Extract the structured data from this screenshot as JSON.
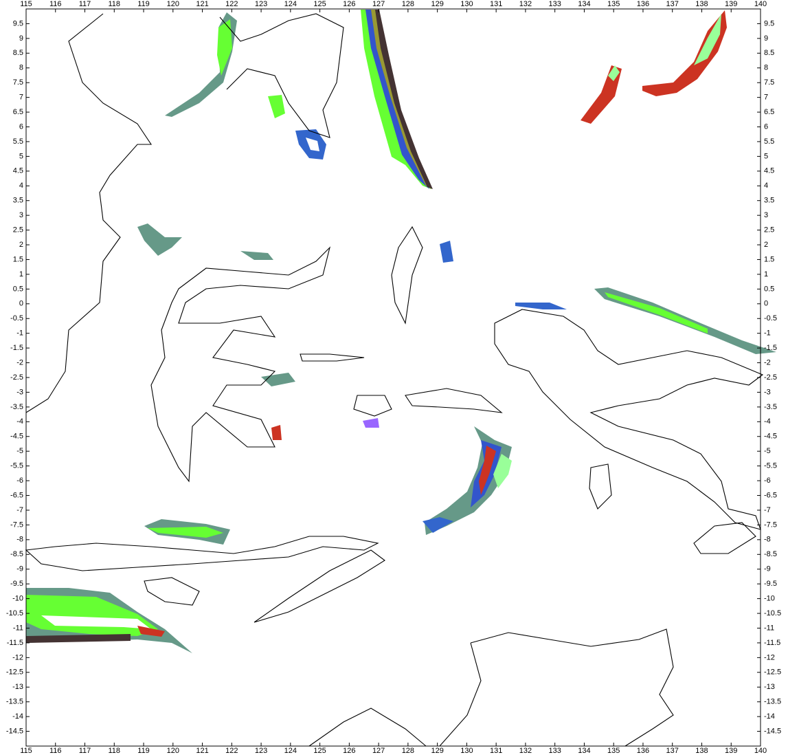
{
  "chart_data": {
    "type": "map",
    "xlim": [
      115,
      140
    ],
    "ylim": [
      -15,
      10
    ],
    "xticks": [
      115,
      116,
      117,
      118,
      119,
      120,
      121,
      122,
      123,
      124,
      125,
      126,
      127,
      128,
      129,
      130,
      131,
      132,
      133,
      134,
      135,
      136,
      137,
      138,
      139,
      140
    ],
    "yticks": [
      9.5,
      9,
      8.5,
      8,
      7.5,
      7,
      6.5,
      6,
      5.5,
      5,
      4.5,
      4,
      3.5,
      3,
      2.5,
      2,
      1.5,
      1,
      0.5,
      0,
      -0.5,
      -1,
      -1.5,
      -2,
      -2.5,
      -3,
      -3.5,
      -4,
      -4.5,
      -5,
      -5.5,
      -6,
      -6.5,
      -7,
      -7.5,
      -8,
      -8.5,
      -9,
      -9.5,
      -10,
      -10.5,
      -11,
      -11.5,
      -12,
      -12.5,
      -13,
      -13.5,
      -14,
      -14.5
    ]
  }
}
